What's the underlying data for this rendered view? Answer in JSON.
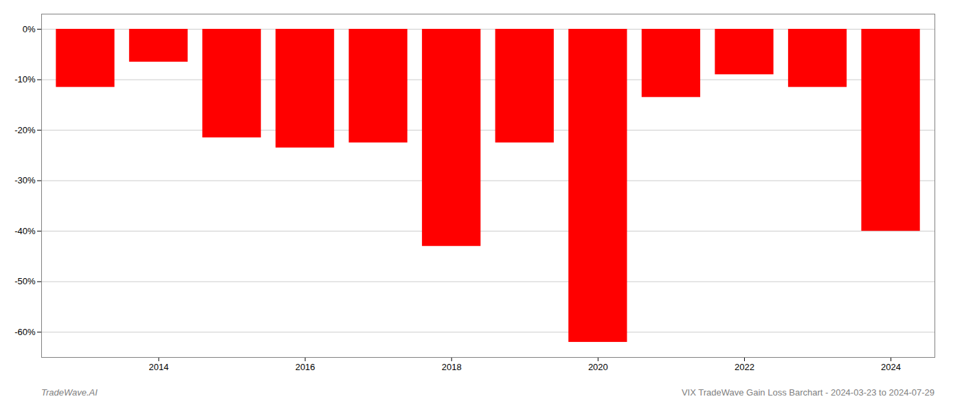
{
  "chart_data": {
    "type": "bar",
    "x": [
      2013,
      2014,
      2015,
      2016,
      2017,
      2018,
      2019,
      2020,
      2021,
      2022,
      2023,
      2024
    ],
    "values": [
      -11.5,
      -6.5,
      -21.5,
      -23.5,
      -22.5,
      -43.0,
      -22.5,
      -62.0,
      -13.5,
      -9.0,
      -11.5,
      -40.0
    ],
    "color": "#ff0000",
    "xlim": [
      2012.4,
      2024.6
    ],
    "xticks": [
      2014,
      2016,
      2018,
      2020,
      2022,
      2024
    ],
    "ylim": [
      -65,
      3
    ],
    "yticks": [
      {
        "value": 0,
        "label": "0%"
      },
      {
        "value": -10,
        "label": "-10%"
      },
      {
        "value": -20,
        "label": "-20%"
      },
      {
        "value": -30,
        "label": "-30%"
      },
      {
        "value": -40,
        "label": "-40%"
      },
      {
        "value": -50,
        "label": "-50%"
      },
      {
        "value": -60,
        "label": "-60%"
      }
    ],
    "grid": true,
    "annotations": [
      "TradeWave.AI",
      "VIX TradeWave Gain Loss Barchart - 2024-03-23 to 2024-07-29"
    ]
  }
}
